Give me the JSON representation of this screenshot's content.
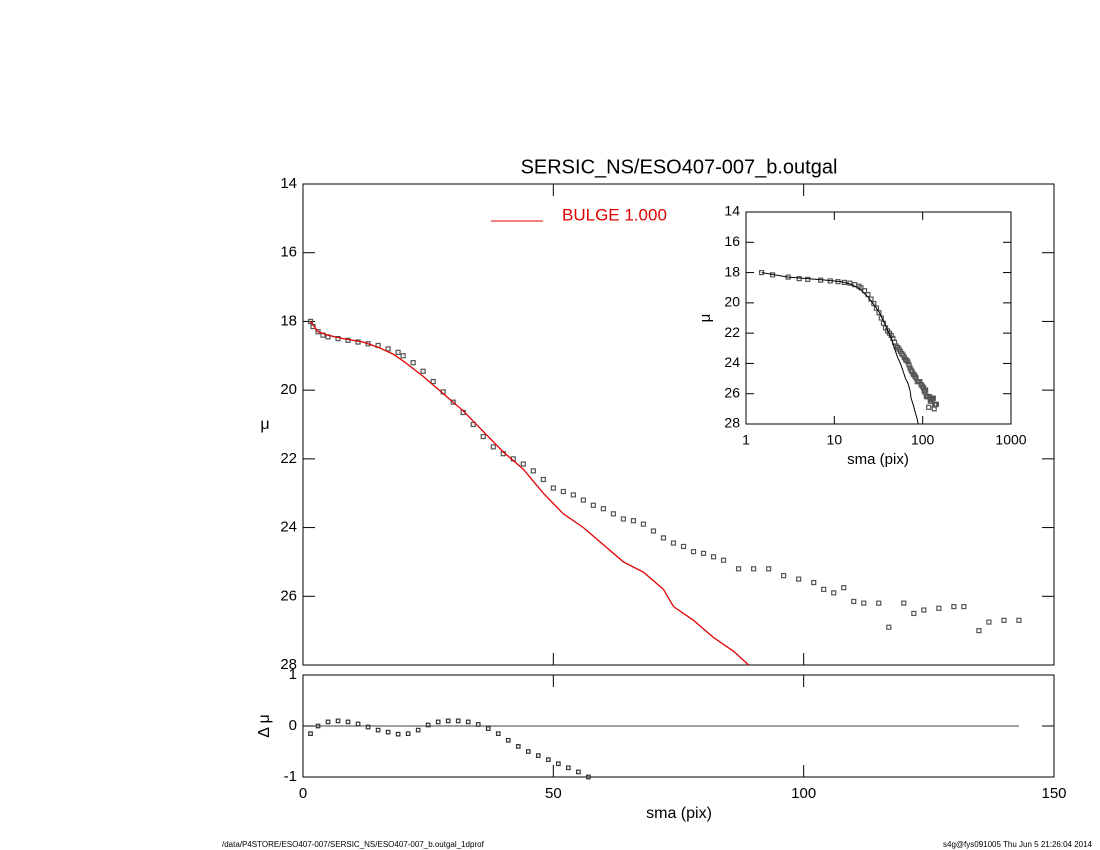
{
  "chart_data": [
    {
      "type": "scatter",
      "title": "SERSIC_NS/ESO407-007_b.outgal",
      "ylabel": "μ",
      "xlim": [
        0,
        150
      ],
      "ylim": [
        28,
        14
      ],
      "xticks": [
        0,
        50,
        100,
        150
      ],
      "yticks": [
        14,
        16,
        18,
        20,
        22,
        24,
        26,
        28
      ],
      "series": [
        {
          "marker": "square",
          "color": "#555555",
          "x": [
            1.5,
            2,
            3,
            4,
            5,
            7,
            9,
            11,
            13,
            15,
            17,
            19,
            20,
            22,
            24,
            26,
            28,
            30,
            32,
            34,
            36,
            38,
            40,
            42,
            44,
            46,
            48,
            50,
            52,
            54,
            56,
            58,
            60,
            62,
            64,
            66,
            68,
            70,
            72,
            74,
            76,
            78,
            80,
            82,
            84,
            87,
            90,
            93,
            96,
            99,
            102,
            104,
            106,
            108,
            110,
            112,
            115,
            117,
            120,
            122,
            124,
            127,
            130,
            132,
            135,
            137,
            140,
            143
          ],
          "values": [
            18.0,
            18.15,
            18.3,
            18.4,
            18.45,
            18.5,
            18.55,
            18.6,
            18.65,
            18.7,
            18.8,
            18.9,
            19.0,
            19.2,
            19.45,
            19.75,
            20.05,
            20.35,
            20.65,
            21.0,
            21.35,
            21.65,
            21.85,
            22.0,
            22.15,
            22.35,
            22.6,
            22.85,
            22.95,
            23.05,
            23.2,
            23.35,
            23.45,
            23.6,
            23.75,
            23.8,
            23.9,
            24.1,
            24.3,
            24.45,
            24.55,
            24.7,
            24.75,
            24.85,
            24.95,
            25.2,
            25.2,
            25.2,
            25.4,
            25.5,
            25.6,
            25.8,
            25.9,
            25.75,
            26.15,
            26.2,
            26.2,
            26.9,
            26.2,
            26.5,
            26.4,
            26.35,
            26.3,
            26.3,
            27.0,
            26.75,
            26.7,
            26.7
          ]
        },
        {
          "name": "BULGE  1.000",
          "color": "#e00000",
          "x": [
            1.5,
            3,
            5,
            8,
            12,
            15,
            18,
            20,
            24,
            28,
            32,
            36,
            40,
            44,
            48,
            52,
            56,
            60,
            64,
            68,
            72,
            74,
            78,
            82,
            86,
            89
          ],
          "values": [
            18.0,
            18.3,
            18.4,
            18.5,
            18.6,
            18.75,
            18.95,
            19.15,
            19.6,
            20.1,
            20.6,
            21.2,
            21.8,
            22.3,
            23.0,
            23.6,
            24.0,
            24.5,
            25.0,
            25.3,
            25.8,
            26.3,
            26.7,
            27.2,
            27.6,
            28.0
          ]
        }
      ]
    },
    {
      "type": "residual",
      "ylabel": "Δ μ",
      "xlabel": "sma (pix)",
      "xlim": [
        0,
        150
      ],
      "ylim": [
        -1,
        1
      ],
      "xticks": [
        0,
        50,
        100,
        150
      ],
      "yticks": [
        -1,
        0,
        1
      ],
      "color": "#333333",
      "x": [
        1.5,
        3,
        5,
        7,
        9,
        11,
        13,
        15,
        17,
        19,
        21,
        23,
        25,
        27,
        29,
        31,
        33,
        35,
        37,
        39,
        41,
        43,
        45,
        47,
        49,
        51,
        53,
        55,
        57
      ],
      "values": [
        -0.15,
        0.0,
        0.08,
        0.1,
        0.08,
        0.04,
        -0.02,
        -0.08,
        -0.12,
        -0.16,
        -0.15,
        -0.08,
        0.02,
        0.08,
        0.1,
        0.1,
        0.08,
        0.03,
        -0.05,
        -0.15,
        -0.28,
        -0.4,
        -0.5,
        -0.58,
        -0.66,
        -0.74,
        -0.82,
        -0.9,
        -1.0
      ]
    },
    {
      "type": "inset",
      "xlabel": "sma (pix)",
      "ylabel": "μ",
      "xlog": true,
      "line_color": "#000000",
      "xlim": [
        1,
        1000
      ],
      "ylim": [
        28,
        14
      ],
      "xticks": [
        1,
        10,
        100,
        1000
      ],
      "yticks": [
        14,
        16,
        18,
        20,
        22,
        24,
        26,
        28
      ]
    }
  ],
  "footer": {
    "left": "/data/P4STORE/ESO407-007/SERSIC_NS/ESO407-007_b.outgal_1dprof",
    "right": "s4g@fys091005  Thu Jun  5 21:26:04 2014"
  }
}
